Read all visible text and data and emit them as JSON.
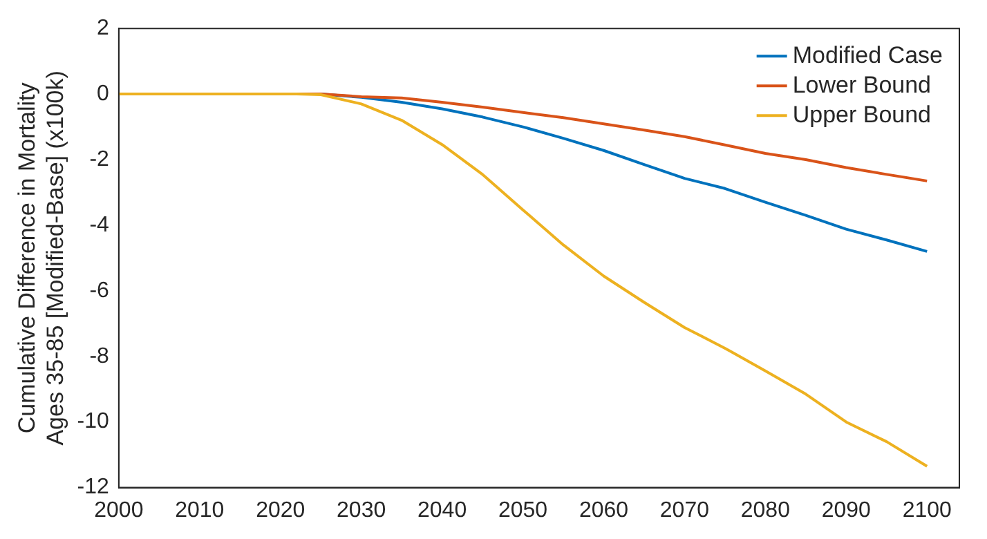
{
  "chart_data": {
    "type": "line",
    "ylabel": "Cumulative Difference in Mortality\nAges 35-85 [Modified-Base] (x100k)",
    "x": [
      2000,
      2010,
      2020,
      2022,
      2025,
      2030,
      2035,
      2040,
      2045,
      2050,
      2055,
      2060,
      2065,
      2070,
      2075,
      2080,
      2085,
      2090,
      2095,
      2100
    ],
    "series": [
      {
        "name": "Modified Case",
        "color": "#0072bd",
        "values": [
          null,
          null,
          null,
          0,
          0,
          -0.1,
          -0.25,
          -0.45,
          -0.7,
          -1.0,
          -1.35,
          -1.72,
          -2.15,
          -2.57,
          -2.88,
          -3.3,
          -3.7,
          -4.12,
          -4.45,
          -4.8
        ]
      },
      {
        "name": "Lower Bound",
        "color": "#d95319",
        "values": [
          null,
          null,
          null,
          0,
          0,
          -0.08,
          -0.12,
          -0.25,
          -0.4,
          -0.56,
          -0.72,
          -0.91,
          -1.1,
          -1.3,
          -1.55,
          -1.81,
          -2.0,
          -2.24,
          -2.45,
          -2.65
        ]
      },
      {
        "name": "Upper Bound",
        "color": "#edb120",
        "values": [
          0,
          0,
          0,
          0,
          -0.02,
          -0.3,
          -0.8,
          -1.54,
          -2.45,
          -3.53,
          -4.6,
          -5.55,
          -6.35,
          -7.12,
          -7.75,
          -8.44,
          -9.15,
          -10.0,
          -10.6,
          -11.35
        ]
      }
    ],
    "xlim": [
      2000,
      2104
    ],
    "xticks": [
      2000,
      2010,
      2020,
      2030,
      2040,
      2050,
      2060,
      2070,
      2080,
      2090,
      2100
    ],
    "ylim": [
      -12,
      2
    ],
    "yticks": [
      -12,
      -10,
      -8,
      -6,
      -4,
      -2,
      0,
      2
    ],
    "grid": false,
    "legend": "top right",
    "marker": "none",
    "line_style": "solid"
  }
}
